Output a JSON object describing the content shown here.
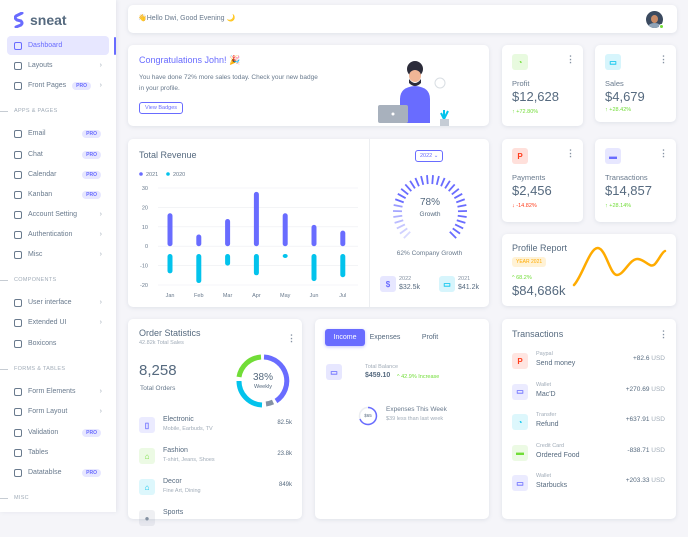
{
  "brand": {
    "name": "sneat"
  },
  "sidebar": {
    "items": [
      {
        "label": "Dashboard",
        "active": true
      },
      {
        "label": "Layouts",
        "chevron": true
      },
      {
        "label": "Front Pages",
        "badge": "PRO",
        "chevron": true
      },
      {
        "section": "APPS & PAGES"
      },
      {
        "label": "Email",
        "badge": "PRO"
      },
      {
        "label": "Chat",
        "badge": "PRO"
      },
      {
        "label": "Calendar",
        "badge": "PRO"
      },
      {
        "label": "Kanban",
        "badge": "PRO"
      },
      {
        "label": "Account Setting",
        "chevron": true
      },
      {
        "label": "Authentication",
        "chevron": true
      },
      {
        "label": "Misc",
        "chevron": true
      },
      {
        "section": "COMPONENTS"
      },
      {
        "label": "User interface",
        "chevron": true
      },
      {
        "label": "Extended UI",
        "chevron": true
      },
      {
        "label": "Boxicons"
      },
      {
        "section": "FORMS & TABLES"
      },
      {
        "label": "Form Elements",
        "chevron": true
      },
      {
        "label": "Form Layout",
        "chevron": true
      },
      {
        "label": "Validation",
        "badge": "PRO"
      },
      {
        "label": "Tables"
      },
      {
        "label": "Datatablse",
        "badge": "PRO"
      },
      {
        "section": "MISC"
      }
    ]
  },
  "navbar": {
    "greeting": "👋Hello Dwi, Good Evening 🌙"
  },
  "congrats": {
    "title": "Congratulations John! 🎉",
    "text": "You have done 72% more sales today. Check your new badge in your profile.",
    "button": "View Badges"
  },
  "stats": [
    {
      "label": "Profit",
      "value": "$12,628",
      "change": "+72.80%",
      "trend": "up",
      "color": "#71dd37",
      "icon": "pie-chart-icon"
    },
    {
      "label": "Sales",
      "value": "$4,679",
      "change": "+28.42%",
      "trend": "up",
      "color": "#03c3ec",
      "icon": "wallet-icon"
    },
    {
      "label": "Payments",
      "value": "$2,456",
      "change": "-14.82%",
      "trend": "down",
      "color": "#ff3e1d",
      "icon": "paypal-icon"
    },
    {
      "label": "Transactions",
      "value": "$14,857",
      "change": "+28.14%",
      "trend": "up",
      "color": "#696cff",
      "icon": "credit-card-icon"
    }
  ],
  "revenue": {
    "title": "Total Revenue",
    "year_select": "2022",
    "growth_percent": "78%",
    "growth_label": "Growth",
    "growth_value": 78,
    "company_growth": "62% Company Growth",
    "summary": [
      {
        "year": "2022",
        "value": "$32.5k",
        "color": "#696cff"
      },
      {
        "year": "2021",
        "value": "$41.2k",
        "color": "#03c3ec"
      }
    ]
  },
  "chart_data": {
    "type": "bar",
    "categories": [
      "Jan",
      "Feb",
      "Mar",
      "Apr",
      "May",
      "Jun",
      "Jul"
    ],
    "series": [
      {
        "name": "2021",
        "color": "#696cff",
        "values": [
          17,
          6,
          14,
          28,
          17,
          11,
          8
        ]
      },
      {
        "name": "2020",
        "color": "#03c3ec",
        "values": [
          -14,
          -19,
          -10,
          -15,
          -6,
          -18,
          -16
        ]
      }
    ],
    "yticks": [
      30,
      20,
      10,
      0,
      -10,
      -20
    ],
    "ylim": [
      -20,
      30
    ],
    "legend": "top-left",
    "grid": true
  },
  "profile_report": {
    "title": "Profile Report",
    "badge": "YEAR 2021",
    "change": "68.2%",
    "value": "$84,686k"
  },
  "order_stats": {
    "title": "Order Statistics",
    "subtitle": "42.82k Total Sales",
    "total": "8,258",
    "total_label": "Total Orders",
    "donut_percent": "38%",
    "donut_label": "Weekly",
    "items": [
      {
        "name": "Electronic",
        "desc": "Mobile, Earbuds, TV",
        "value": "82.5k",
        "color": "#696cff",
        "icon": "mobile-icon"
      },
      {
        "name": "Fashion",
        "desc": "T-shirt, Jeans, Shoes",
        "value": "23.8k",
        "color": "#71dd37",
        "icon": "closet-icon"
      },
      {
        "name": "Decor",
        "desc": "Fine Art, Dining",
        "value": "849k",
        "color": "#03c3ec",
        "icon": "home-icon"
      },
      {
        "name": "Sports",
        "desc": "",
        "value": "",
        "color": "#8592a3",
        "icon": "football-icon"
      }
    ]
  },
  "income": {
    "tabs": [
      "Income",
      "Expenses",
      "Profit"
    ],
    "balance_label": "Total Balance",
    "balance": "$459.10",
    "balance_change": "42.9% Increase",
    "expenses_value": "$65",
    "expenses_title": "Expenses This Week",
    "expenses_sub": "$39 less than last week"
  },
  "transactions": {
    "title": "Transactions",
    "currency": "USD",
    "items": [
      {
        "type": "Paypal",
        "name": "Send money",
        "amount": "+82.6",
        "color": "#ff3e1d",
        "icon": "paypal-icon"
      },
      {
        "type": "Wallet",
        "name": "Mac'D",
        "amount": "+270.69",
        "color": "#696cff",
        "icon": "wallet-icon"
      },
      {
        "type": "Transfer",
        "name": "Refund",
        "amount": "+637.91",
        "color": "#03c3ec",
        "icon": "chart-icon"
      },
      {
        "type": "Credit Card",
        "name": "Ordered Food",
        "amount": "-838.71",
        "color": "#71dd37",
        "icon": "credit-card-icon"
      },
      {
        "type": "Wallet",
        "name": "Starbucks",
        "amount": "+203.33",
        "color": "#696cff",
        "icon": "wallet-icon"
      }
    ]
  }
}
